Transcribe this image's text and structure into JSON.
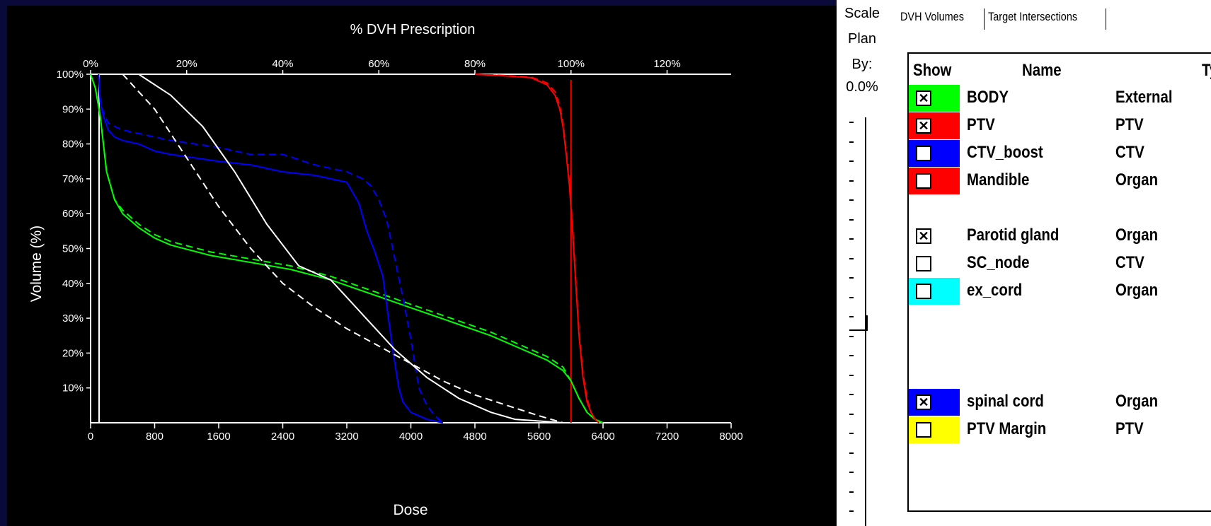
{
  "chart_data": {
    "type": "line",
    "title": "% DVH Prescription",
    "xlabel": "Dose",
    "ylabel": "Volume (%)",
    "xlim": [
      0,
      8000
    ],
    "ylim": [
      0,
      100
    ],
    "x_ticks": [
      "0",
      "800",
      "1600",
      "2400",
      "3200",
      "4000",
      "4800",
      "5600",
      "6400",
      "7200",
      "8000"
    ],
    "top_ticks": [
      "0%",
      "20%",
      "40%",
      "60%",
      "80%",
      "100%",
      "120%"
    ],
    "y_ticks": [
      "10%",
      "20%",
      "30%",
      "40%",
      "50%",
      "60%",
      "70%",
      "80%",
      "90%",
      "100%"
    ],
    "prescription_dose": 6000,
    "series": [
      {
        "name": "BODY",
        "color": "#00ff00",
        "dash": false,
        "x": [
          0,
          60,
          120,
          200,
          300,
          400,
          600,
          800,
          1000,
          1500,
          2000,
          2500,
          3000,
          3500,
          4000,
          4500,
          5000,
          5400,
          5700,
          5900,
          6000,
          6100,
          6200,
          6300,
          6400
        ],
        "y": [
          100,
          96,
          88,
          72,
          64,
          60,
          56,
          53,
          51,
          48,
          46,
          44,
          41,
          37,
          33,
          29,
          25,
          21,
          18,
          15,
          12,
          7,
          3,
          1,
          0
        ]
      },
      {
        "name": "BODY",
        "color": "#00ff00",
        "dash": true,
        "x": [
          0,
          60,
          120,
          200,
          300,
          400,
          600,
          800,
          1000,
          1500,
          2000,
          2500,
          3000,
          3500,
          4000,
          4500,
          5000,
          5400,
          5700,
          5900,
          6000,
          6100,
          6200,
          6300,
          6400
        ],
        "y": [
          100,
          96,
          88,
          72,
          64,
          61,
          57,
          54,
          52,
          49,
          47,
          45,
          42,
          38,
          34,
          30,
          26,
          22,
          19,
          16,
          12,
          7,
          3,
          1,
          0
        ]
      },
      {
        "name": "PTV",
        "color": "#ff0000",
        "dash": false,
        "x": [
          4800,
          5200,
          5500,
          5700,
          5800,
          5860,
          5900,
          5940,
          5980,
          6020,
          6060,
          6100,
          6150,
          6200,
          6250,
          6300,
          6350
        ],
        "y": [
          100,
          99.5,
          99,
          97,
          94,
          90,
          85,
          77,
          68,
          55,
          40,
          25,
          13,
          6,
          3,
          1,
          0
        ]
      },
      {
        "name": "PTV",
        "color": "#ff0000",
        "dash": true,
        "x": [
          4800,
          5200,
          5500,
          5700,
          5800,
          5860,
          5900,
          5940,
          5980,
          6020,
          6060,
          6100,
          6150,
          6200,
          6250,
          6300,
          6350
        ],
        "y": [
          100,
          99.6,
          99.2,
          97.5,
          95,
          91,
          86,
          78,
          69,
          56,
          41,
          26,
          14,
          7,
          3,
          1,
          0
        ]
      },
      {
        "name": "spinal cord",
        "color": "#0000ff",
        "dash": false,
        "x": [
          100,
          120,
          160,
          220,
          300,
          400,
          600,
          800,
          1000,
          1600,
          2000,
          2400,
          2800,
          3200,
          3350,
          3450,
          3550,
          3650,
          3720,
          3780,
          3850,
          3900,
          4000,
          4100,
          4200,
          4300,
          4400
        ],
        "y": [
          100,
          92,
          88,
          84,
          82,
          81,
          80,
          78,
          77,
          75,
          74,
          72,
          71,
          69,
          63,
          55,
          49,
          42,
          30,
          20,
          10,
          6,
          3,
          2,
          1,
          0.5,
          0
        ]
      },
      {
        "name": "spinal cord",
        "color": "#0000ff",
        "dash": true,
        "x": [
          100,
          120,
          160,
          220,
          300,
          400,
          600,
          800,
          1000,
          1600,
          2000,
          2400,
          2800,
          3200,
          3400,
          3500,
          3600,
          3700,
          3800,
          3900,
          4000,
          4100,
          4200,
          4300,
          4400
        ],
        "y": [
          100,
          93,
          89,
          86,
          85,
          84,
          83,
          82,
          81,
          79,
          77,
          77,
          74,
          72,
          70,
          68,
          64,
          58,
          47,
          36,
          24,
          10,
          5,
          2,
          0
        ]
      },
      {
        "name": "Parotid gland",
        "color": "#ffffff",
        "dash": false,
        "x": [
          600,
          1000,
          1400,
          1800,
          2200,
          2600,
          3000,
          3400,
          3800,
          4200,
          4600,
          5000,
          5300,
          5600,
          5900
        ],
        "y": [
          100,
          94,
          85,
          72,
          57,
          45,
          41,
          31,
          21,
          13,
          7,
          3,
          1,
          0.5,
          0
        ]
      },
      {
        "name": "Parotid gland",
        "color": "#ffffff",
        "dash": true,
        "x": [
          400,
          800,
          1200,
          1600,
          2000,
          2400,
          2800,
          3200,
          3600,
          4000,
          4400,
          4800,
          5200,
          5600,
          5900
        ],
        "y": [
          100,
          90,
          76,
          62,
          50,
          40,
          33,
          27,
          22,
          17,
          12,
          8,
          5,
          2,
          0
        ]
      }
    ]
  },
  "side": {
    "scale_label": "Scale",
    "plan_label": "Plan",
    "by_label": "By:",
    "percent_value": "0.0%",
    "tabs": [
      "DVH Volumes",
      "Target Intersections"
    ]
  },
  "table": {
    "headers": [
      "Show",
      "Name",
      "Typ"
    ],
    "rows": [
      {
        "checked": true,
        "name": "BODY",
        "type": "External",
        "color": "#00ff00"
      },
      {
        "checked": true,
        "name": "PTV",
        "type": "PTV",
        "color": "#ff0000"
      },
      {
        "checked": false,
        "name": "CTV_boost",
        "type": "CTV",
        "color": "#0000ff"
      },
      {
        "checked": false,
        "name": "Mandible",
        "type": "Organ",
        "color": "#ff0000"
      },
      {
        "checked": true,
        "name": "Parotid gland",
        "type": "Organ",
        "color": ""
      },
      {
        "checked": false,
        "name": "SC_node",
        "type": "CTV",
        "color": ""
      },
      {
        "checked": false,
        "name": "ex_cord",
        "type": "Organ",
        "color": "#00ffff"
      },
      {
        "checked": true,
        "name": "spinal cord",
        "type": "Organ",
        "color": "#0000ff"
      },
      {
        "checked": false,
        "name": "PTV Margin",
        "type": "PTV",
        "color": "#ffff00"
      }
    ]
  }
}
